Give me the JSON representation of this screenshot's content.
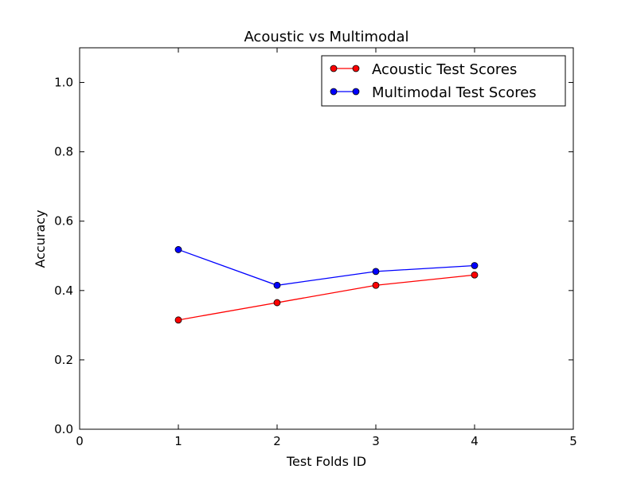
{
  "chart_data": {
    "type": "line",
    "title": "Acoustic vs Multimodal",
    "xlabel": "Test Folds ID",
    "ylabel": "Accuracy",
    "xlim": [
      0,
      5
    ],
    "ylim": [
      0,
      1.1
    ],
    "xticks": [
      0,
      1,
      2,
      3,
      4,
      5
    ],
    "yticks": [
      0.0,
      0.2,
      0.4,
      0.6,
      0.8,
      1.0
    ],
    "xtick_labels": [
      "0",
      "1",
      "2",
      "3",
      "4",
      "5"
    ],
    "ytick_labels": [
      "0.0",
      "0.2",
      "0.4",
      "0.6",
      "0.8",
      "1.0"
    ],
    "grid": false,
    "legend_position": "top-right",
    "x": [
      1,
      2,
      3,
      4
    ],
    "series": [
      {
        "name": "Acoustic Test Scores",
        "color": "#ff0000",
        "line_color": "#ff0000",
        "values": [
          0.315,
          0.365,
          0.415,
          0.445
        ]
      },
      {
        "name": "Multimodal Test Scores",
        "color": "#0000ff",
        "line_color": "#0000ff",
        "values": [
          0.518,
          0.415,
          0.455,
          0.472
        ]
      }
    ]
  }
}
